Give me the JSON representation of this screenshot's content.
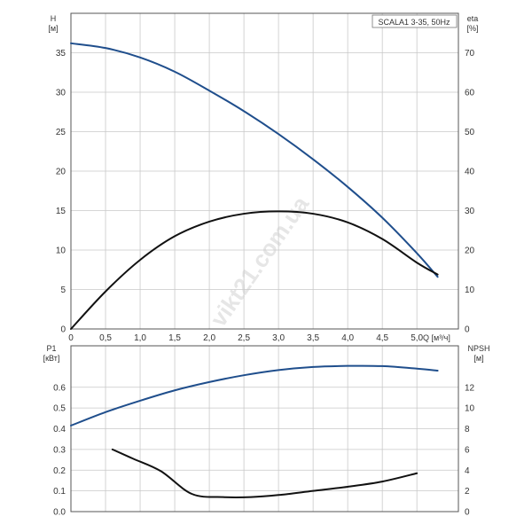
{
  "watermark": "vikt21.com.ua",
  "colors": {
    "head_curve": "#1f4e8c",
    "eta_curve": "#111111",
    "p1_curve": "#1f4e8c",
    "npsh_curve": "#111111",
    "grid": "#c8c8c8",
    "frame": "#555555"
  },
  "chart_data": [
    {
      "type": "line",
      "title": "SCALA1 3-35, 50Hz",
      "xlabel": "Q [м³/ч]",
      "ylabel_left": "H",
      "ylabel_left_unit": "[м]",
      "ylabel_right": "eta",
      "ylabel_right_unit": "[%]",
      "xlim": [
        0,
        5.6
      ],
      "ylim_left": [
        0,
        40
      ],
      "ylim_right": [
        0,
        80
      ],
      "x_ticks": [
        "0",
        "0,5",
        "1,0",
        "1,5",
        "2,0",
        "2,5",
        "3,0",
        "3,5",
        "4,0",
        "4,5",
        "5,0"
      ],
      "x_tick_values": [
        0,
        0.5,
        1,
        1.5,
        2,
        2.5,
        3,
        3.5,
        4,
        4.5,
        5
      ],
      "y_left_ticks": [
        0,
        5,
        10,
        15,
        20,
        25,
        30,
        35
      ],
      "y_right_ticks": [
        0,
        10,
        20,
        30,
        40,
        50,
        60,
        70
      ],
      "grid": true,
      "series": [
        {
          "axis": "left",
          "color": "#1f4e8c",
          "x": [
            0,
            0.5,
            1.0,
            1.5,
            2.0,
            2.5,
            3.0,
            3.5,
            4.0,
            4.5,
            5.0,
            5.3
          ],
          "y": [
            36.2,
            35.6,
            34.4,
            32.6,
            30.2,
            27.6,
            24.7,
            21.5,
            18.0,
            14.1,
            9.6,
            6.6
          ]
        },
        {
          "axis": "right",
          "color": "#111111",
          "x": [
            0,
            0.5,
            1.0,
            1.5,
            2.0,
            2.5,
            3.0,
            3.5,
            4.0,
            4.5,
            5.0,
            5.3
          ],
          "y": [
            0,
            9.5,
            17.5,
            23.5,
            27.2,
            29.2,
            29.8,
            29.2,
            27.0,
            22.8,
            16.8,
            13.8
          ]
        }
      ]
    },
    {
      "type": "line",
      "xlim": [
        0,
        5.6
      ],
      "ylabel_left": "P1",
      "ylabel_left_unit": "[кВт]",
      "ylabel_right": "NPSH",
      "ylabel_right_unit": "[м]",
      "ylim_left": [
        0,
        0.8
      ],
      "ylim_right": [
        0,
        16
      ],
      "y_left_ticks": [
        "0.0",
        "0.1",
        "0.2",
        "0.3",
        "0.4",
        "0.5",
        "0.6"
      ],
      "y_left_tick_values": [
        0,
        0.1,
        0.2,
        0.3,
        0.4,
        0.5,
        0.6
      ],
      "y_right_ticks": [
        0,
        2,
        4,
        6,
        8,
        10,
        12
      ],
      "grid": true,
      "series": [
        {
          "axis": "left",
          "color": "#1f4e8c",
          "x": [
            0,
            0.5,
            1.0,
            1.5,
            2.0,
            2.5,
            3.0,
            3.5,
            4.0,
            4.5,
            5.0,
            5.3
          ],
          "y": [
            0.415,
            0.48,
            0.535,
            0.585,
            0.625,
            0.658,
            0.683,
            0.698,
            0.703,
            0.702,
            0.69,
            0.68
          ]
        },
        {
          "axis": "right",
          "color": "#111111",
          "x": [
            0.6,
            0.9,
            1.3,
            1.75,
            2.2,
            2.6,
            3.0,
            3.5,
            4.0,
            4.5,
            5.0
          ],
          "y": [
            6.0,
            5.1,
            3.9,
            1.7,
            1.4,
            1.4,
            1.6,
            2.0,
            2.4,
            2.9,
            3.7
          ]
        }
      ]
    }
  ]
}
